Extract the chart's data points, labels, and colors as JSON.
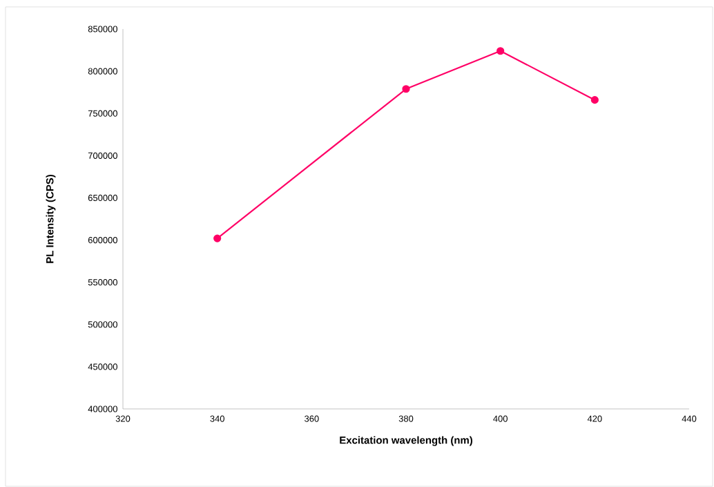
{
  "chart_data": {
    "type": "line",
    "xlabel": "Excitation wavelength (nm)",
    "ylabel": "PL Intensity (CPS)",
    "x": [
      340,
      380,
      400,
      420
    ],
    "series": [
      {
        "color": "#ff0066",
        "values": [
          602000,
          779000,
          824000,
          766000
        ]
      }
    ],
    "xlim": [
      320,
      440
    ],
    "xticks": [
      320,
      340,
      360,
      380,
      400,
      420,
      440
    ],
    "ylim": [
      400000,
      850000
    ],
    "yticks": [
      400000,
      450000,
      500000,
      550000,
      600000,
      650000,
      700000,
      750000,
      800000,
      850000
    ],
    "marker": "circle",
    "line_style": "solid",
    "grid": false
  }
}
